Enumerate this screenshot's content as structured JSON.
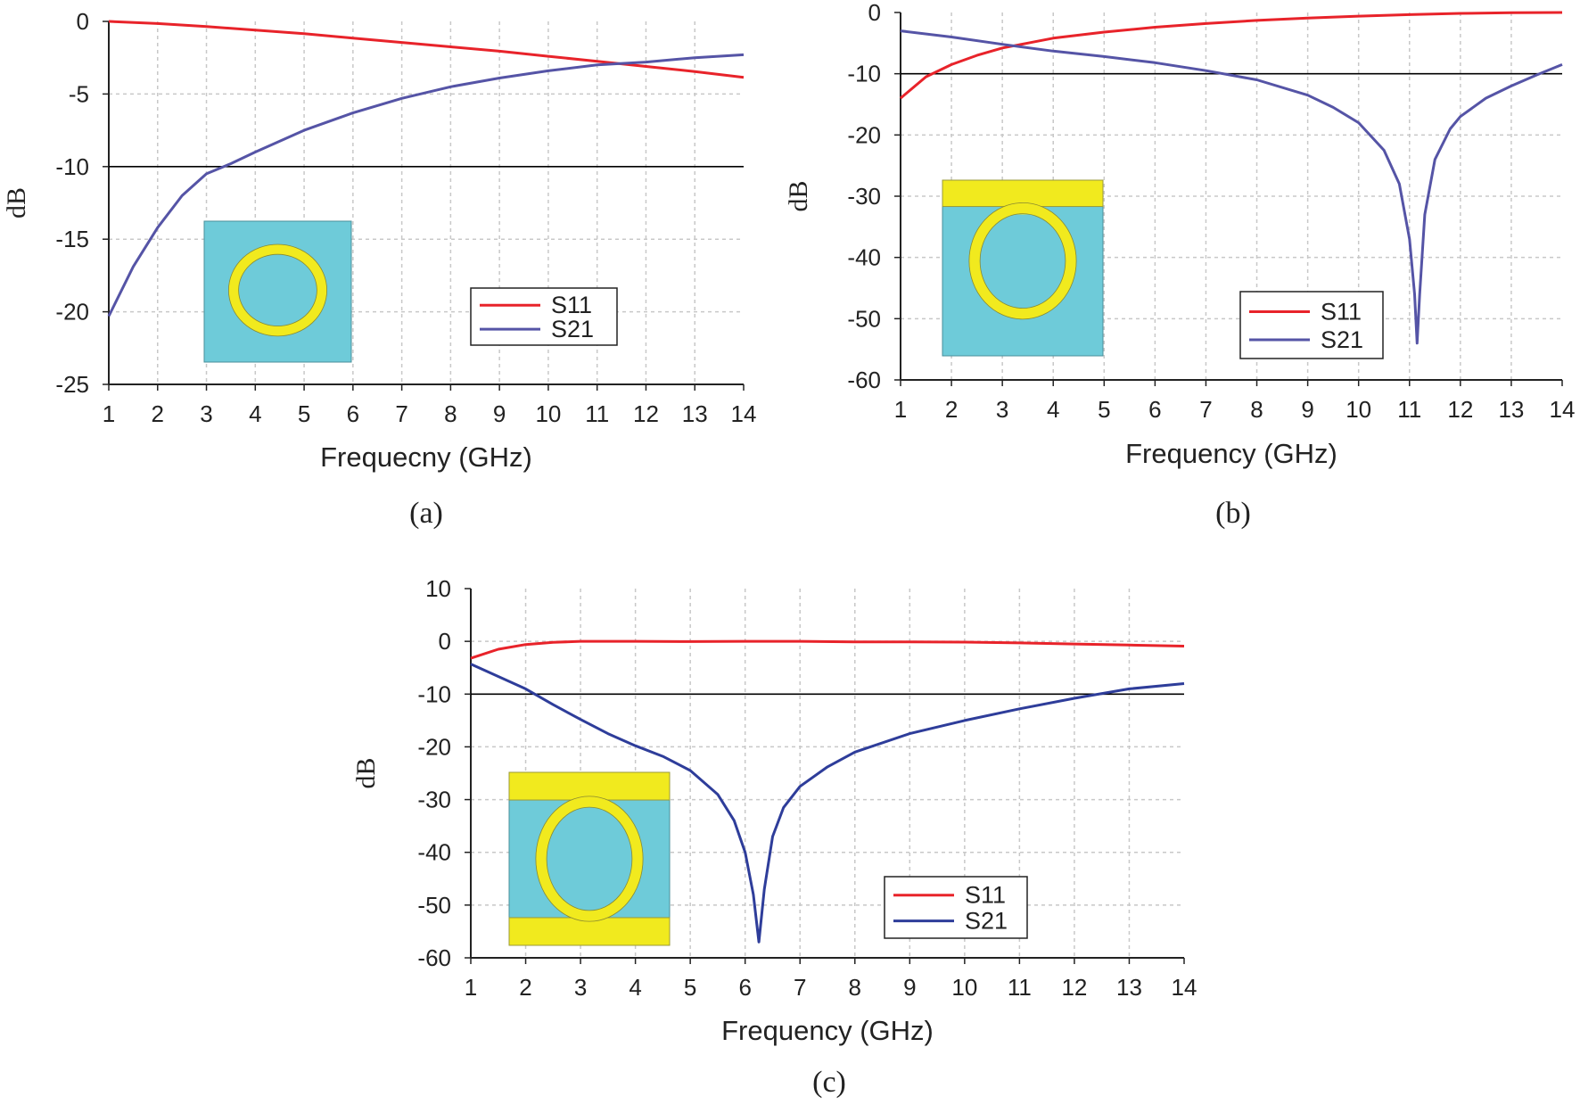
{
  "colors": {
    "s11": "#e8232a",
    "s21_ab": "#5554a6",
    "s21_c": "#2e3d9a",
    "substrate": "#6ecbd9",
    "metal": "#f1ea1e",
    "threshold": "#000000",
    "grid": "#c8c8c8"
  },
  "chart_data": [
    {
      "id": "a",
      "type": "line",
      "caption": "(a)",
      "xlabel": "Frequecny (GHz)",
      "ylabel": "dB",
      "xlim": [
        1,
        14
      ],
      "ylim": [
        -25,
        0
      ],
      "xticks": [
        1,
        2,
        3,
        4,
        5,
        6,
        7,
        8,
        9,
        10,
        11,
        12,
        13,
        14
      ],
      "yticks": [
        0,
        -5,
        -10,
        -15,
        -20,
        -25
      ],
      "threshold": -10,
      "grid": true,
      "legend_position": "center-right",
      "inset_icon": "ring-resonator-icon",
      "series": [
        {
          "name": "S11",
          "color_key": "s11",
          "x": [
            1,
            2,
            3,
            4,
            5,
            6,
            7,
            8,
            9,
            10,
            11,
            12,
            13,
            14
          ],
          "y": [
            0,
            -0.15,
            -0.35,
            -0.6,
            -0.85,
            -1.15,
            -1.45,
            -1.75,
            -2.05,
            -2.4,
            -2.75,
            -3.1,
            -3.45,
            -3.85
          ]
        },
        {
          "name": "S21",
          "color_key": "s21_ab",
          "x": [
            1,
            1.5,
            2,
            2.5,
            3,
            3.5,
            4,
            5,
            6,
            7,
            8,
            9,
            10,
            11,
            12,
            13,
            14
          ],
          "y": [
            -20.3,
            -16.9,
            -14.2,
            -12,
            -10.5,
            -9.8,
            -9,
            -7.5,
            -6.3,
            -5.3,
            -4.5,
            -3.9,
            -3.4,
            -3,
            -2.8,
            -2.5,
            -2.3
          ]
        }
      ]
    },
    {
      "id": "b",
      "type": "line",
      "caption": "(b)",
      "xlabel": "Frequency (GHz)",
      "ylabel": "dB",
      "xlim": [
        1,
        14
      ],
      "ylim": [
        -60,
        0
      ],
      "xticks": [
        1,
        2,
        3,
        4,
        5,
        6,
        7,
        8,
        9,
        10,
        11,
        12,
        13,
        14
      ],
      "yticks": [
        0,
        -10,
        -20,
        -30,
        -40,
        -50,
        -60
      ],
      "threshold": -10,
      "grid": true,
      "legend_position": "bottom-right",
      "inset_icon": "ring-with-top-strip-icon",
      "series": [
        {
          "name": "S11",
          "color_key": "s11",
          "x": [
            1,
            1.5,
            2,
            2.5,
            3,
            3.5,
            4,
            5,
            6,
            7,
            8,
            9,
            10,
            11,
            12,
            13,
            14
          ],
          "y": [
            -14,
            -10.5,
            -8.5,
            -7,
            -5.8,
            -5,
            -4.2,
            -3.2,
            -2.4,
            -1.8,
            -1.3,
            -0.9,
            -0.6,
            -0.35,
            -0.15,
            -0.05,
            0
          ]
        },
        {
          "name": "S21",
          "color_key": "s21_ab",
          "x": [
            1,
            2,
            3,
            4,
            5,
            6,
            7,
            8,
            9,
            9.5,
            10,
            10.5,
            10.8,
            11,
            11.1,
            11.15,
            11.2,
            11.3,
            11.5,
            11.8,
            12,
            12.5,
            13,
            13.5,
            14
          ],
          "y": [
            -3,
            -4,
            -5.2,
            -6.3,
            -7.2,
            -8.2,
            -9.5,
            -11,
            -13.5,
            -15.5,
            -18,
            -22.5,
            -28,
            -37,
            -46,
            -54,
            -46,
            -33,
            -24,
            -19,
            -17,
            -14,
            -12,
            -10.2,
            -8.5
          ]
        }
      ]
    },
    {
      "id": "c",
      "type": "line",
      "caption": "(c)",
      "xlabel": "Frequency (GHz)",
      "ylabel": "dB",
      "xlim": [
        1,
        14
      ],
      "ylim": [
        -60,
        10
      ],
      "xticks": [
        1,
        2,
        3,
        4,
        5,
        6,
        7,
        8,
        9,
        10,
        11,
        12,
        13,
        14
      ],
      "yticks": [
        10,
        0,
        -10,
        -20,
        -30,
        -40,
        -50,
        -60
      ],
      "threshold": -10,
      "grid": true,
      "legend_position": "bottom-right",
      "inset_icon": "ring-with-two-strips-icon",
      "series": [
        {
          "name": "S11",
          "color_key": "s11",
          "x": [
            1,
            1.5,
            2,
            2.5,
            3,
            4,
            5,
            6,
            7,
            8,
            9,
            10,
            11,
            12,
            13,
            14
          ],
          "y": [
            -3.2,
            -1.5,
            -0.6,
            -0.2,
            0,
            0,
            -0.05,
            0,
            0,
            -0.1,
            -0.1,
            -0.15,
            -0.3,
            -0.5,
            -0.7,
            -0.9
          ]
        },
        {
          "name": "S21",
          "color_key": "s21_c",
          "x": [
            1,
            2,
            2.5,
            3,
            3.5,
            4,
            4.5,
            5,
            5.5,
            5.8,
            6,
            6.15,
            6.25,
            6.35,
            6.5,
            6.7,
            7,
            7.5,
            8,
            9,
            10,
            11,
            12,
            13,
            14
          ],
          "y": [
            -4.3,
            -9,
            -12,
            -14.8,
            -17.5,
            -19.8,
            -21.8,
            -24.5,
            -29,
            -34,
            -40,
            -48,
            -57,
            -47,
            -37,
            -31.5,
            -27.5,
            -23.8,
            -21,
            -17.5,
            -15,
            -12.8,
            -10.8,
            -9,
            -8
          ]
        }
      ]
    }
  ]
}
